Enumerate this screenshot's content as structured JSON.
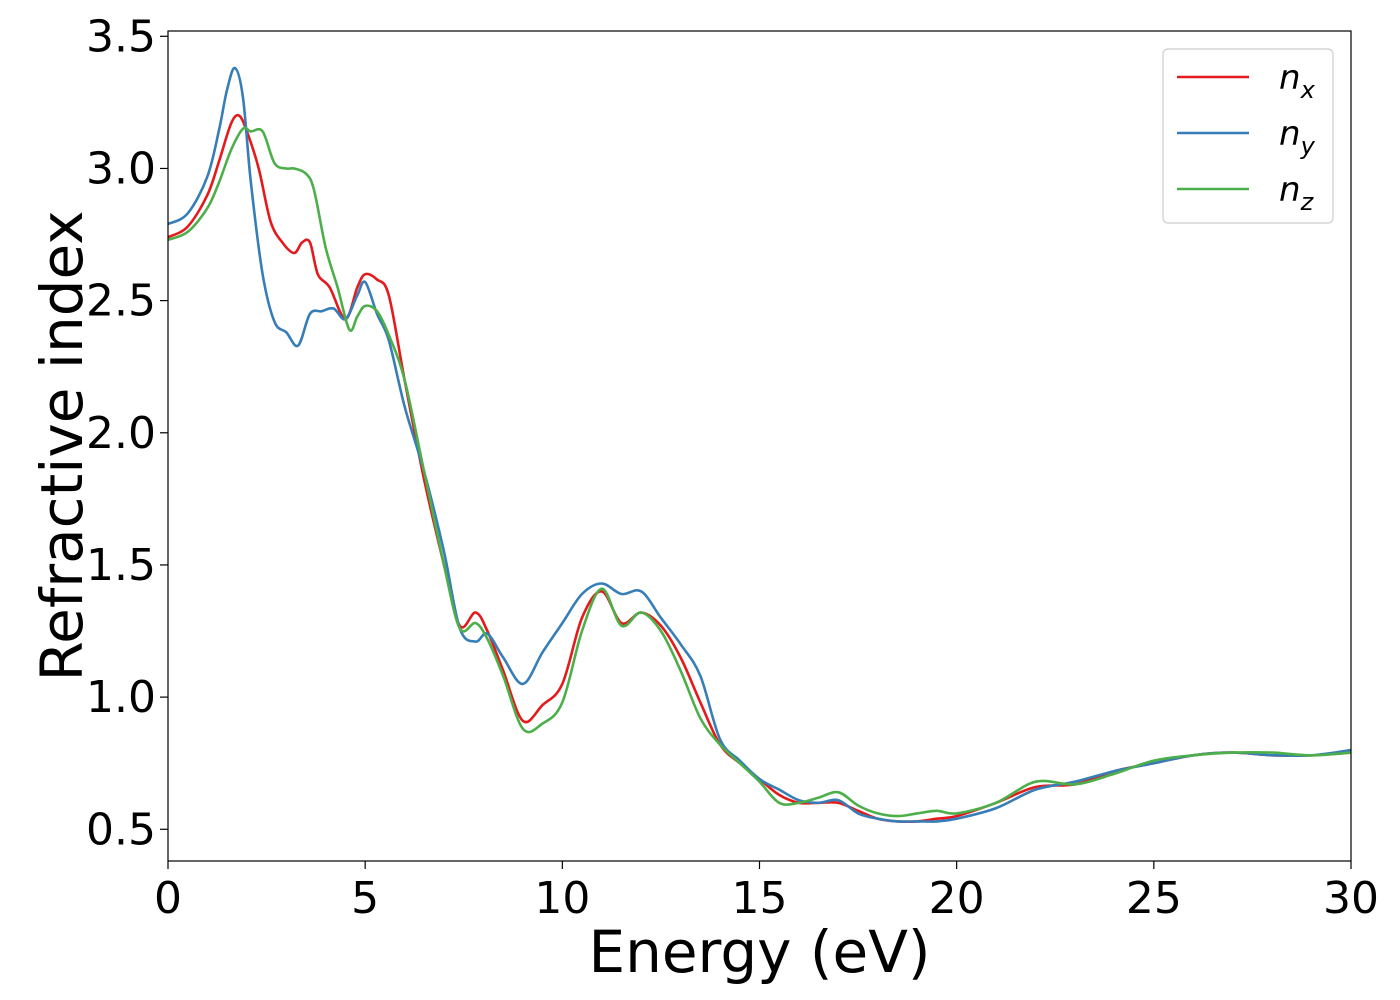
{
  "chart_data": {
    "type": "line",
    "xlabel": "Energy (eV)",
    "ylabel": "Refractive index",
    "xlim": [
      0,
      30
    ],
    "ylim": [
      0.38,
      3.52
    ],
    "xticks": [
      0,
      5,
      10,
      15,
      20,
      25,
      30
    ],
    "xtick_labels": [
      "0",
      "5",
      "10",
      "15",
      "20",
      "25",
      "30"
    ],
    "yticks": [
      0.5,
      1.0,
      1.5,
      2.0,
      2.5,
      3.0,
      3.5
    ],
    "ytick_labels": [
      "0.5",
      "1.0",
      "1.5",
      "2.0",
      "2.5",
      "3.0",
      "3.5"
    ],
    "grid": false,
    "legend_position": "top-right",
    "series": [
      {
        "name": "n",
        "subscript": "x",
        "color": "#e41a1c",
        "x": [
          0,
          0.5,
          1.0,
          1.3,
          1.6,
          1.8,
          2.0,
          2.3,
          2.6,
          2.9,
          3.2,
          3.4,
          3.6,
          3.8,
          4.1,
          4.5,
          4.8,
          5.0,
          5.3,
          5.6,
          6.0,
          6.5,
          7.0,
          7.4,
          7.8,
          8.1,
          8.5,
          9.0,
          9.5,
          10.0,
          10.5,
          11.0,
          11.5,
          12.0,
          12.5,
          13.0,
          13.5,
          14.0,
          14.5,
          15.0,
          15.5,
          16.0,
          16.5,
          17.0,
          17.5,
          18.0,
          18.5,
          19.0,
          19.5,
          20.0,
          21.0,
          22.0,
          23.0,
          24.0,
          25.0,
          26.0,
          27.0,
          28.0,
          29.0,
          30.0
        ],
        "y": [
          2.74,
          2.78,
          2.9,
          3.03,
          3.17,
          3.2,
          3.14,
          3.0,
          2.8,
          2.72,
          2.68,
          2.72,
          2.72,
          2.6,
          2.55,
          2.43,
          2.55,
          2.6,
          2.58,
          2.52,
          2.2,
          1.82,
          1.5,
          1.27,
          1.32,
          1.25,
          1.1,
          0.91,
          0.97,
          1.05,
          1.3,
          1.4,
          1.28,
          1.32,
          1.27,
          1.15,
          0.98,
          0.82,
          0.75,
          0.69,
          0.63,
          0.6,
          0.6,
          0.6,
          0.57,
          0.54,
          0.53,
          0.53,
          0.54,
          0.55,
          0.6,
          0.66,
          0.67,
          0.72,
          0.75,
          0.78,
          0.79,
          0.78,
          0.78,
          0.79
        ]
      },
      {
        "name": "n",
        "subscript": "y",
        "color": "#377eb8",
        "x": [
          0,
          0.5,
          1.0,
          1.3,
          1.5,
          1.7,
          1.9,
          2.1,
          2.4,
          2.7,
          3.0,
          3.3,
          3.6,
          3.9,
          4.2,
          4.5,
          4.8,
          5.0,
          5.3,
          5.6,
          6.0,
          6.5,
          7.0,
          7.4,
          7.8,
          8.1,
          8.5,
          9.0,
          9.5,
          10.0,
          10.5,
          11.0,
          11.5,
          12.0,
          12.5,
          13.0,
          13.5,
          14.0,
          14.5,
          15.0,
          15.5,
          16.0,
          16.5,
          17.0,
          17.5,
          18.0,
          18.5,
          19.0,
          19.5,
          20.0,
          21.0,
          22.0,
          23.0,
          24.0,
          25.0,
          26.0,
          27.0,
          28.0,
          29.0,
          30.0
        ],
        "y": [
          2.79,
          2.83,
          2.97,
          3.15,
          3.3,
          3.38,
          3.27,
          2.95,
          2.6,
          2.42,
          2.38,
          2.33,
          2.45,
          2.46,
          2.47,
          2.43,
          2.52,
          2.57,
          2.45,
          2.35,
          2.1,
          1.85,
          1.55,
          1.26,
          1.21,
          1.24,
          1.15,
          1.05,
          1.17,
          1.28,
          1.39,
          1.43,
          1.39,
          1.4,
          1.3,
          1.2,
          1.08,
          0.84,
          0.76,
          0.69,
          0.65,
          0.61,
          0.6,
          0.61,
          0.56,
          0.54,
          0.53,
          0.53,
          0.53,
          0.54,
          0.58,
          0.65,
          0.68,
          0.72,
          0.75,
          0.78,
          0.79,
          0.78,
          0.78,
          0.8
        ]
      },
      {
        "name": "n",
        "subscript": "z",
        "color": "#4daf4a",
        "x": [
          0,
          0.5,
          1.0,
          1.3,
          1.6,
          1.9,
          2.1,
          2.4,
          2.7,
          3.0,
          3.2,
          3.5,
          3.7,
          4.0,
          4.3,
          4.6,
          4.8,
          5.0,
          5.3,
          5.6,
          6.0,
          6.5,
          7.0,
          7.4,
          7.8,
          8.1,
          8.5,
          9.0,
          9.5,
          10.0,
          10.5,
          11.0,
          11.5,
          12.0,
          12.5,
          13.0,
          13.5,
          14.0,
          14.5,
          15.0,
          15.5,
          16.0,
          16.5,
          17.0,
          17.5,
          18.0,
          18.5,
          19.0,
          19.5,
          20.0,
          21.0,
          22.0,
          23.0,
          24.0,
          25.0,
          26.0,
          27.0,
          28.0,
          29.0,
          30.0
        ],
        "y": [
          2.73,
          2.76,
          2.85,
          2.95,
          3.07,
          3.15,
          3.14,
          3.14,
          3.02,
          3.0,
          3.0,
          2.98,
          2.92,
          2.7,
          2.55,
          2.39,
          2.44,
          2.48,
          2.46,
          2.37,
          2.2,
          1.85,
          1.5,
          1.26,
          1.28,
          1.22,
          1.08,
          0.88,
          0.9,
          0.98,
          1.25,
          1.41,
          1.27,
          1.32,
          1.25,
          1.1,
          0.92,
          0.82,
          0.75,
          0.68,
          0.6,
          0.6,
          0.62,
          0.64,
          0.59,
          0.56,
          0.55,
          0.56,
          0.57,
          0.56,
          0.6,
          0.68,
          0.67,
          0.71,
          0.76,
          0.78,
          0.79,
          0.79,
          0.78,
          0.79
        ]
      }
    ]
  }
}
